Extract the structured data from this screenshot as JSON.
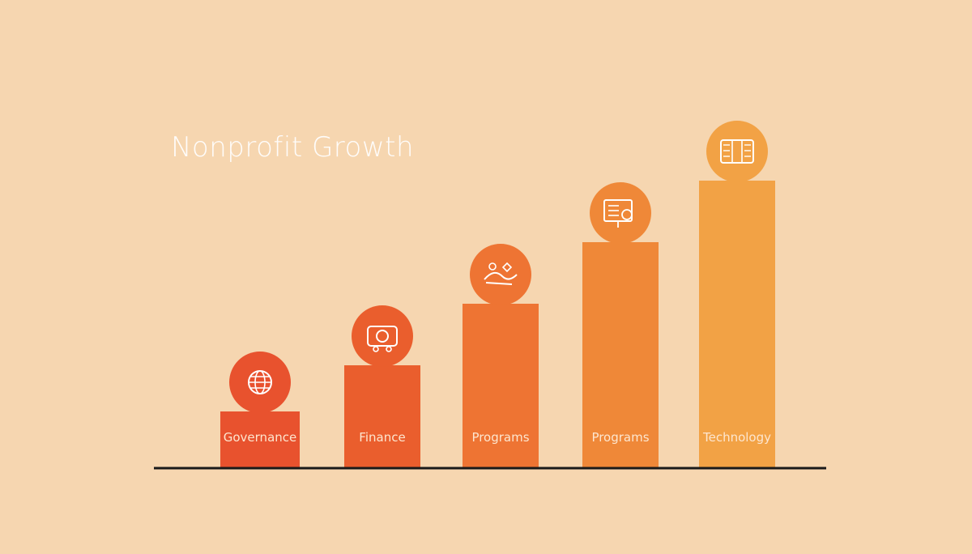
{
  "title": "Nonprofit Growth",
  "chart_data": {
    "type": "bar",
    "title": "Nonprofit Growth",
    "categories": [
      "Governance",
      "Finance",
      "Programs",
      "Programs",
      "Technology"
    ],
    "values": [
      1,
      2,
      3,
      4,
      5
    ],
    "xlabel": "",
    "ylabel": "",
    "ylim": [
      0,
      5.5
    ],
    "grid": false,
    "legend": "none",
    "icons": [
      "globe-icon",
      "camera-icon",
      "handshake-icon",
      "presentation-icon",
      "server-icon"
    ],
    "colors": [
      "#e8522e",
      "#ea5e2d",
      "#ee7433",
      "#ef8838",
      "#f2a245"
    ]
  },
  "colors": {
    "background": "#f6d6b0",
    "axis": "#1a1a1a",
    "icon_stroke": "#ffffff"
  }
}
